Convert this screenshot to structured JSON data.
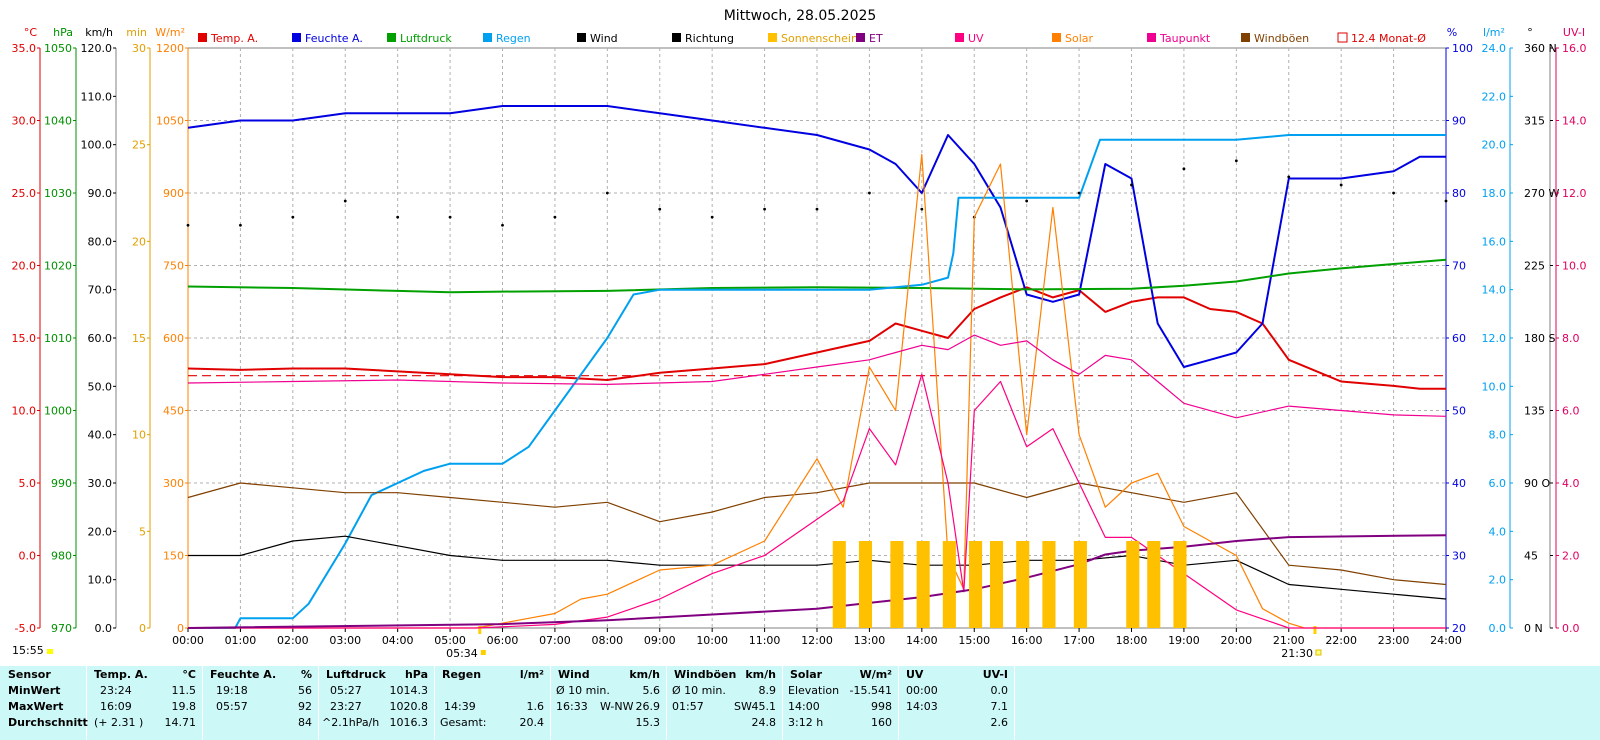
{
  "title": "Mittwoch, 28.05.2025",
  "legend": [
    {
      "label": "Temp. A.",
      "color": "#e00000",
      "style": "fill"
    },
    {
      "label": "Feuchte A.",
      "color": "#0000e0",
      "style": "fill"
    },
    {
      "label": "Luftdruck",
      "color": "#00a000",
      "style": "fill"
    },
    {
      "label": "Regen",
      "color": "#00a0f0",
      "style": "fill"
    },
    {
      "label": "Wind",
      "color": "#000000",
      "style": "fill"
    },
    {
      "label": "Richtung",
      "color": "#000000",
      "style": "fill"
    },
    {
      "label": "Sonnenschein",
      "color": "#ffc000",
      "style": "fill"
    },
    {
      "label": "ET",
      "color": "#800080",
      "style": "fill"
    },
    {
      "label": "UV",
      "color": "#ff0080",
      "style": "fill"
    },
    {
      "label": "Solar",
      "color": "#ff8000",
      "style": "fill"
    },
    {
      "label": "Taupunkt",
      "color": "#f00090",
      "style": "fill"
    },
    {
      "label": "Windböen",
      "color": "#804000",
      "style": "fill"
    },
    {
      "label": "12.4 Monat-Ø",
      "color": "#e00000",
      "style": "outline"
    }
  ],
  "axes": {
    "temp": {
      "unit": "°C",
      "color": "#e00000",
      "ticks": [
        "35.0",
        "30.0",
        "25.0",
        "20.0",
        "15.0",
        "10.0",
        "5.0",
        "0.0",
        "-5.0"
      ]
    },
    "pressure": {
      "unit": "hPa",
      "color": "#009000",
      "ticks": [
        "1050",
        "1040",
        "1030",
        "1020",
        "1010",
        "1000",
        "990",
        "980",
        "970"
      ]
    },
    "wind": {
      "unit": "km/h",
      "color": "#000000",
      "ticks": [
        "120.0",
        "110.0",
        "100.0",
        "90.0",
        "80.0",
        "70.0",
        "60.0",
        "50.0",
        "40.0",
        "30.0",
        "20.0",
        "10.0",
        "0.0"
      ]
    },
    "sunshine": {
      "unit": "min",
      "color": "#e0a000",
      "ticks": [
        "30",
        "25",
        "20",
        "15",
        "10",
        "5",
        "0"
      ]
    },
    "solar": {
      "unit": "W/m²",
      "color": "#ff8000",
      "ticks": [
        "1200",
        "1050",
        "900",
        "750",
        "600",
        "450",
        "300",
        "150",
        "0"
      ]
    },
    "humidity": {
      "unit": "%",
      "color": "#0000e0",
      "ticks": [
        "100",
        "90",
        "80",
        "70",
        "60",
        "50",
        "40",
        "30",
        "20"
      ]
    },
    "rain": {
      "unit": "l/m²",
      "color": "#00a0f0",
      "ticks": [
        "24.0",
        "22.0",
        "20.0",
        "18.0",
        "16.0",
        "14.0",
        "12.0",
        "10.0",
        "8.0",
        "6.0",
        "4.0",
        "2.0",
        "0.0"
      ]
    },
    "direction": {
      "unit": "°",
      "color": "#000000",
      "ticks": [
        "360 N",
        "315",
        "270 W",
        "225",
        "180 S",
        "135",
        "90 O",
        "45",
        "0 N"
      ]
    },
    "uv": {
      "unit": "UV-I",
      "color": "#e00060",
      "ticks": [
        "16.0",
        "14.0",
        "12.0",
        "10.0",
        "8.0",
        "6.0",
        "4.0",
        "2.0",
        "0.0"
      ]
    },
    "x_ticks": [
      "00:00",
      "01:00",
      "02:00",
      "03:00",
      "04:00",
      "05:00",
      "06:00",
      "07:00",
      "08:00",
      "09:00",
      "10:00",
      "11:00",
      "12:00",
      "13:00",
      "14:00",
      "15:00",
      "16:00",
      "17:00",
      "18:00",
      "19:00",
      "20:00",
      "21:00",
      "22:00",
      "23:00",
      "24:00"
    ]
  },
  "sunrise": "05:34",
  "sunset": "21:30",
  "time_left": "15:55",
  "chart_data": {
    "type": "line",
    "title": "Mittwoch, 28.05.2025",
    "x_unit": "hours",
    "grid": true,
    "legend_position": "top",
    "monthly_avg_temp": 12.4,
    "series": [
      {
        "name": "Temp. A.",
        "axis": "temp",
        "x": [
          0,
          1,
          2,
          3,
          4,
          5,
          6,
          7,
          8,
          9,
          10,
          11,
          12,
          13,
          13.5,
          14,
          14.5,
          15,
          15.5,
          16,
          16.5,
          17,
          17.5,
          18,
          18.5,
          19,
          19.5,
          20,
          20.5,
          21,
          22,
          23,
          23.5,
          24
        ],
        "y": [
          12.9,
          12.8,
          12.9,
          12.9,
          12.7,
          12.5,
          12.3,
          12.3,
          12.1,
          12.6,
          12.9,
          13.2,
          14.0,
          14.8,
          16.0,
          15.5,
          15.0,
          17.0,
          17.8,
          18.5,
          17.8,
          18.3,
          16.8,
          17.5,
          17.8,
          17.8,
          17.0,
          16.8,
          16.0,
          13.5,
          12.0,
          11.7,
          11.5,
          11.5
        ]
      },
      {
        "name": "Feuchte A.",
        "axis": "humidity",
        "x": [
          0,
          1,
          1.5,
          2,
          3,
          4,
          5,
          6,
          7,
          8,
          9,
          10,
          11,
          12,
          13,
          13.5,
          14,
          14.5,
          15,
          15.5,
          16,
          16.5,
          17,
          17.5,
          18,
          18.5,
          19,
          19.5,
          20,
          20.5,
          21,
          22,
          23,
          23.5,
          24
        ],
        "y": [
          89,
          90,
          90,
          90,
          91,
          91,
          91,
          92,
          92,
          92,
          91,
          90,
          89,
          88,
          86,
          84,
          80,
          88,
          84,
          78,
          66,
          65,
          66,
          84,
          82,
          62,
          56,
          57,
          58,
          62,
          82,
          82,
          83,
          85,
          85
        ]
      },
      {
        "name": "Luftdruck",
        "axis": "pressure",
        "x": [
          0,
          2,
          4,
          5,
          6,
          8,
          10,
          12,
          14,
          16,
          18,
          19,
          20,
          21,
          22,
          23,
          24
        ],
        "y": [
          1017.1,
          1016.9,
          1016.5,
          1016.3,
          1016.4,
          1016.5,
          1016.9,
          1017.0,
          1016.9,
          1016.7,
          1016.8,
          1017.2,
          1017.8,
          1018.9,
          1019.6,
          1020.2,
          1020.8
        ]
      },
      {
        "name": "Regen",
        "axis": "rain",
        "x": [
          0,
          0.9,
          1,
          2,
          2.3,
          3,
          3.5,
          4.5,
          5,
          6,
          6.5,
          7,
          7.5,
          8,
          8.5,
          9,
          10,
          12,
          13,
          14,
          14.5,
          14.6,
          14.7,
          15,
          16,
          17,
          17.4,
          18,
          20,
          21,
          22,
          23,
          24
        ],
        "y": [
          0,
          0,
          0.4,
          0.4,
          1.0,
          3.5,
          5.5,
          6.5,
          6.8,
          6.8,
          7.5,
          9.0,
          10.5,
          12.0,
          13.8,
          14.0,
          14.0,
          14.0,
          14.0,
          14.2,
          14.5,
          15.5,
          17.8,
          17.8,
          17.8,
          17.8,
          20.2,
          20.2,
          20.2,
          20.4,
          20.4,
          20.4,
          20.4
        ]
      },
      {
        "name": "Wind",
        "axis": "wind",
        "x": [
          0,
          1,
          2,
          3,
          4,
          5,
          6,
          7,
          8,
          9,
          10,
          11,
          12,
          13,
          14,
          15,
          16,
          17,
          18,
          19,
          20,
          21,
          22,
          23,
          24
        ],
        "y": [
          15,
          15,
          18,
          19,
          17,
          15,
          14,
          14,
          14,
          13,
          13,
          13,
          13,
          14,
          13,
          13,
          14,
          14,
          15,
          13,
          14,
          9,
          8,
          7,
          6
        ]
      },
      {
        "name": "Windböen",
        "axis": "wind",
        "x": [
          0,
          1,
          2,
          3,
          4,
          5,
          6,
          7,
          8,
          9,
          10,
          11,
          12,
          13,
          14,
          15,
          16,
          17,
          18,
          19,
          20,
          21,
          22,
          23,
          24
        ],
        "y": [
          27,
          30,
          29,
          28,
          28,
          27,
          26,
          25,
          26,
          22,
          24,
          27,
          28,
          30,
          30,
          30,
          27,
          30,
          28,
          26,
          28,
          13,
          12,
          10,
          9
        ]
      },
      {
        "name": "Richtung",
        "axis": "direction",
        "x": [
          0,
          1,
          2,
          3,
          4,
          5,
          6,
          7,
          8,
          9,
          10,
          11,
          12,
          13,
          14,
          15,
          16,
          17,
          18,
          19,
          20,
          21,
          22,
          23,
          24
        ],
        "y": [
          250,
          250,
          255,
          265,
          255,
          255,
          250,
          255,
          270,
          260,
          255,
          260,
          260,
          270,
          260,
          255,
          265,
          270,
          275,
          285,
          290,
          280,
          275,
          270,
          265
        ]
      },
      {
        "name": "Solar",
        "axis": "solar",
        "x": [
          0,
          5.5,
          6.5,
          7,
          7.5,
          8,
          9,
          10,
          11,
          12,
          12.5,
          13,
          13.5,
          14,
          14.5,
          14.8,
          15,
          15.5,
          16,
          16.5,
          17,
          17.5,
          18,
          18.5,
          19,
          20,
          20.5,
          21,
          21.3,
          24
        ],
        "y": [
          0,
          0,
          20,
          30,
          60,
          70,
          120,
          130,
          180,
          350,
          250,
          540,
          450,
          980,
          150,
          80,
          850,
          960,
          400,
          870,
          400,
          250,
          300,
          320,
          210,
          150,
          40,
          10,
          0,
          0
        ]
      },
      {
        "name": "UV",
        "axis": "uv",
        "x": [
          0,
          5.5,
          7,
          8,
          9,
          10,
          11,
          12,
          12.5,
          13,
          13.5,
          14,
          14.5,
          14.8,
          15,
          15.5,
          16,
          16.5,
          17,
          17.5,
          18,
          19,
          20,
          21,
          24
        ],
        "y": [
          0,
          0,
          0.1,
          0.3,
          0.8,
          1.5,
          2.0,
          3.0,
          3.5,
          5.5,
          4.5,
          7.0,
          4.0,
          1.0,
          6.0,
          6.8,
          5.0,
          5.5,
          4.0,
          2.5,
          2.5,
          1.5,
          0.5,
          0,
          0
        ]
      },
      {
        "name": "Taupunkt",
        "axis": "temp",
        "x": [
          0,
          2,
          4,
          6,
          8,
          10,
          11,
          12,
          13,
          13.5,
          14,
          14.5,
          15,
          15.5,
          16,
          16.5,
          17,
          17.5,
          18,
          18.5,
          19,
          20,
          21,
          22,
          23,
          24
        ],
        "y": [
          11.9,
          12.0,
          12.1,
          11.9,
          11.8,
          12.0,
          12.5,
          13.0,
          13.5,
          14.0,
          14.5,
          14.2,
          15.2,
          14.5,
          14.8,
          13.5,
          12.5,
          13.8,
          13.5,
          12.0,
          10.5,
          9.5,
          10.3,
          10.0,
          9.7,
          9.6
        ]
      },
      {
        "name": "ET",
        "axis": "sunshine",
        "x": [
          0,
          6,
          8,
          10,
          12,
          13,
          14,
          15,
          16,
          17,
          17.5,
          18,
          19,
          20,
          21,
          24
        ],
        "y": [
          0,
          0.2,
          0.4,
          0.7,
          1.0,
          1.3,
          1.6,
          2.0,
          2.6,
          3.3,
          3.8,
          4.0,
          4.2,
          4.5,
          4.7,
          4.8
        ]
      },
      {
        "name": "Sonnenschein",
        "axis": "sunshine",
        "type": "bar",
        "x": [
          12.3,
          12.8,
          13.4,
          13.9,
          14.4,
          14.9,
          15.3,
          15.8,
          16.3,
          16.9,
          17.9,
          18.3,
          18.8
        ],
        "y": [
          4.5,
          4.5,
          4.5,
          4.5,
          4.5,
          4.5,
          4.5,
          4.5,
          4.5,
          4.5,
          4.5,
          4.5,
          4.5
        ]
      }
    ]
  },
  "stats": {
    "headers": {
      "sensor": "Sensor",
      "temp": "Temp. A.",
      "temp_unit": "°C",
      "hum": "Feuchte A.",
      "hum_unit": "%",
      "press": "Luftdruck",
      "press_unit": "hPa",
      "rain": "Regen",
      "rain_unit": "l/m²",
      "wind": "Wind",
      "wind_unit": "km/h",
      "gust": "Windböen",
      "gust_unit": "km/h",
      "solar": "Solar",
      "solar_unit": "W/m²",
      "uv": "UV",
      "uv_unit": "UV-I"
    },
    "rows": [
      {
        "label": "MinWert",
        "temp_t": "23:24",
        "temp_v": "11.5",
        "hum_t": "19:18",
        "hum_v": "56",
        "press_t": "05:27",
        "press_v": "1014.3",
        "rain_t": "",
        "rain_v": "",
        "wind_t": "Ø 10 min.",
        "wind_d": "",
        "wind_v": "5.6",
        "gust_t": "Ø 10 min.",
        "gust_d": "",
        "gust_v": "8.9",
        "solar_t": "Elevation",
        "solar_v": "-15.541",
        "uv_t": "00:00",
        "uv_v": "0.0"
      },
      {
        "label": "MaxWert",
        "temp_t": "16:09",
        "temp_v": "19.8",
        "hum_t": "05:57",
        "hum_v": "92",
        "press_t": "23:27",
        "press_v": "1020.8",
        "rain_t": "14:39",
        "rain_v": "1.6",
        "wind_t": "16:33",
        "wind_d": "W-NW",
        "wind_v": "26.9",
        "gust_t": "01:57",
        "gust_d": "SW",
        "gust_v": "45.1",
        "solar_t": "14:00",
        "solar_v": "998",
        "uv_t": "14:03",
        "uv_v": "7.1"
      },
      {
        "label": "Durchschnitt",
        "temp_t": "(+ 2.31 )",
        "temp_v": "14.71",
        "hum_t": "",
        "hum_v": "84",
        "press_t": "^2.1hPa/h",
        "press_v": "1016.3",
        "rain_t": "Gesamt:",
        "rain_v": "20.4",
        "wind_t": "",
        "wind_d": "",
        "wind_v": "15.3",
        "gust_t": "",
        "gust_d": "",
        "gust_v": "24.8",
        "solar_t": "3:12 h",
        "solar_v": "160",
        "uv_t": "",
        "uv_v": "2.6"
      }
    ]
  }
}
